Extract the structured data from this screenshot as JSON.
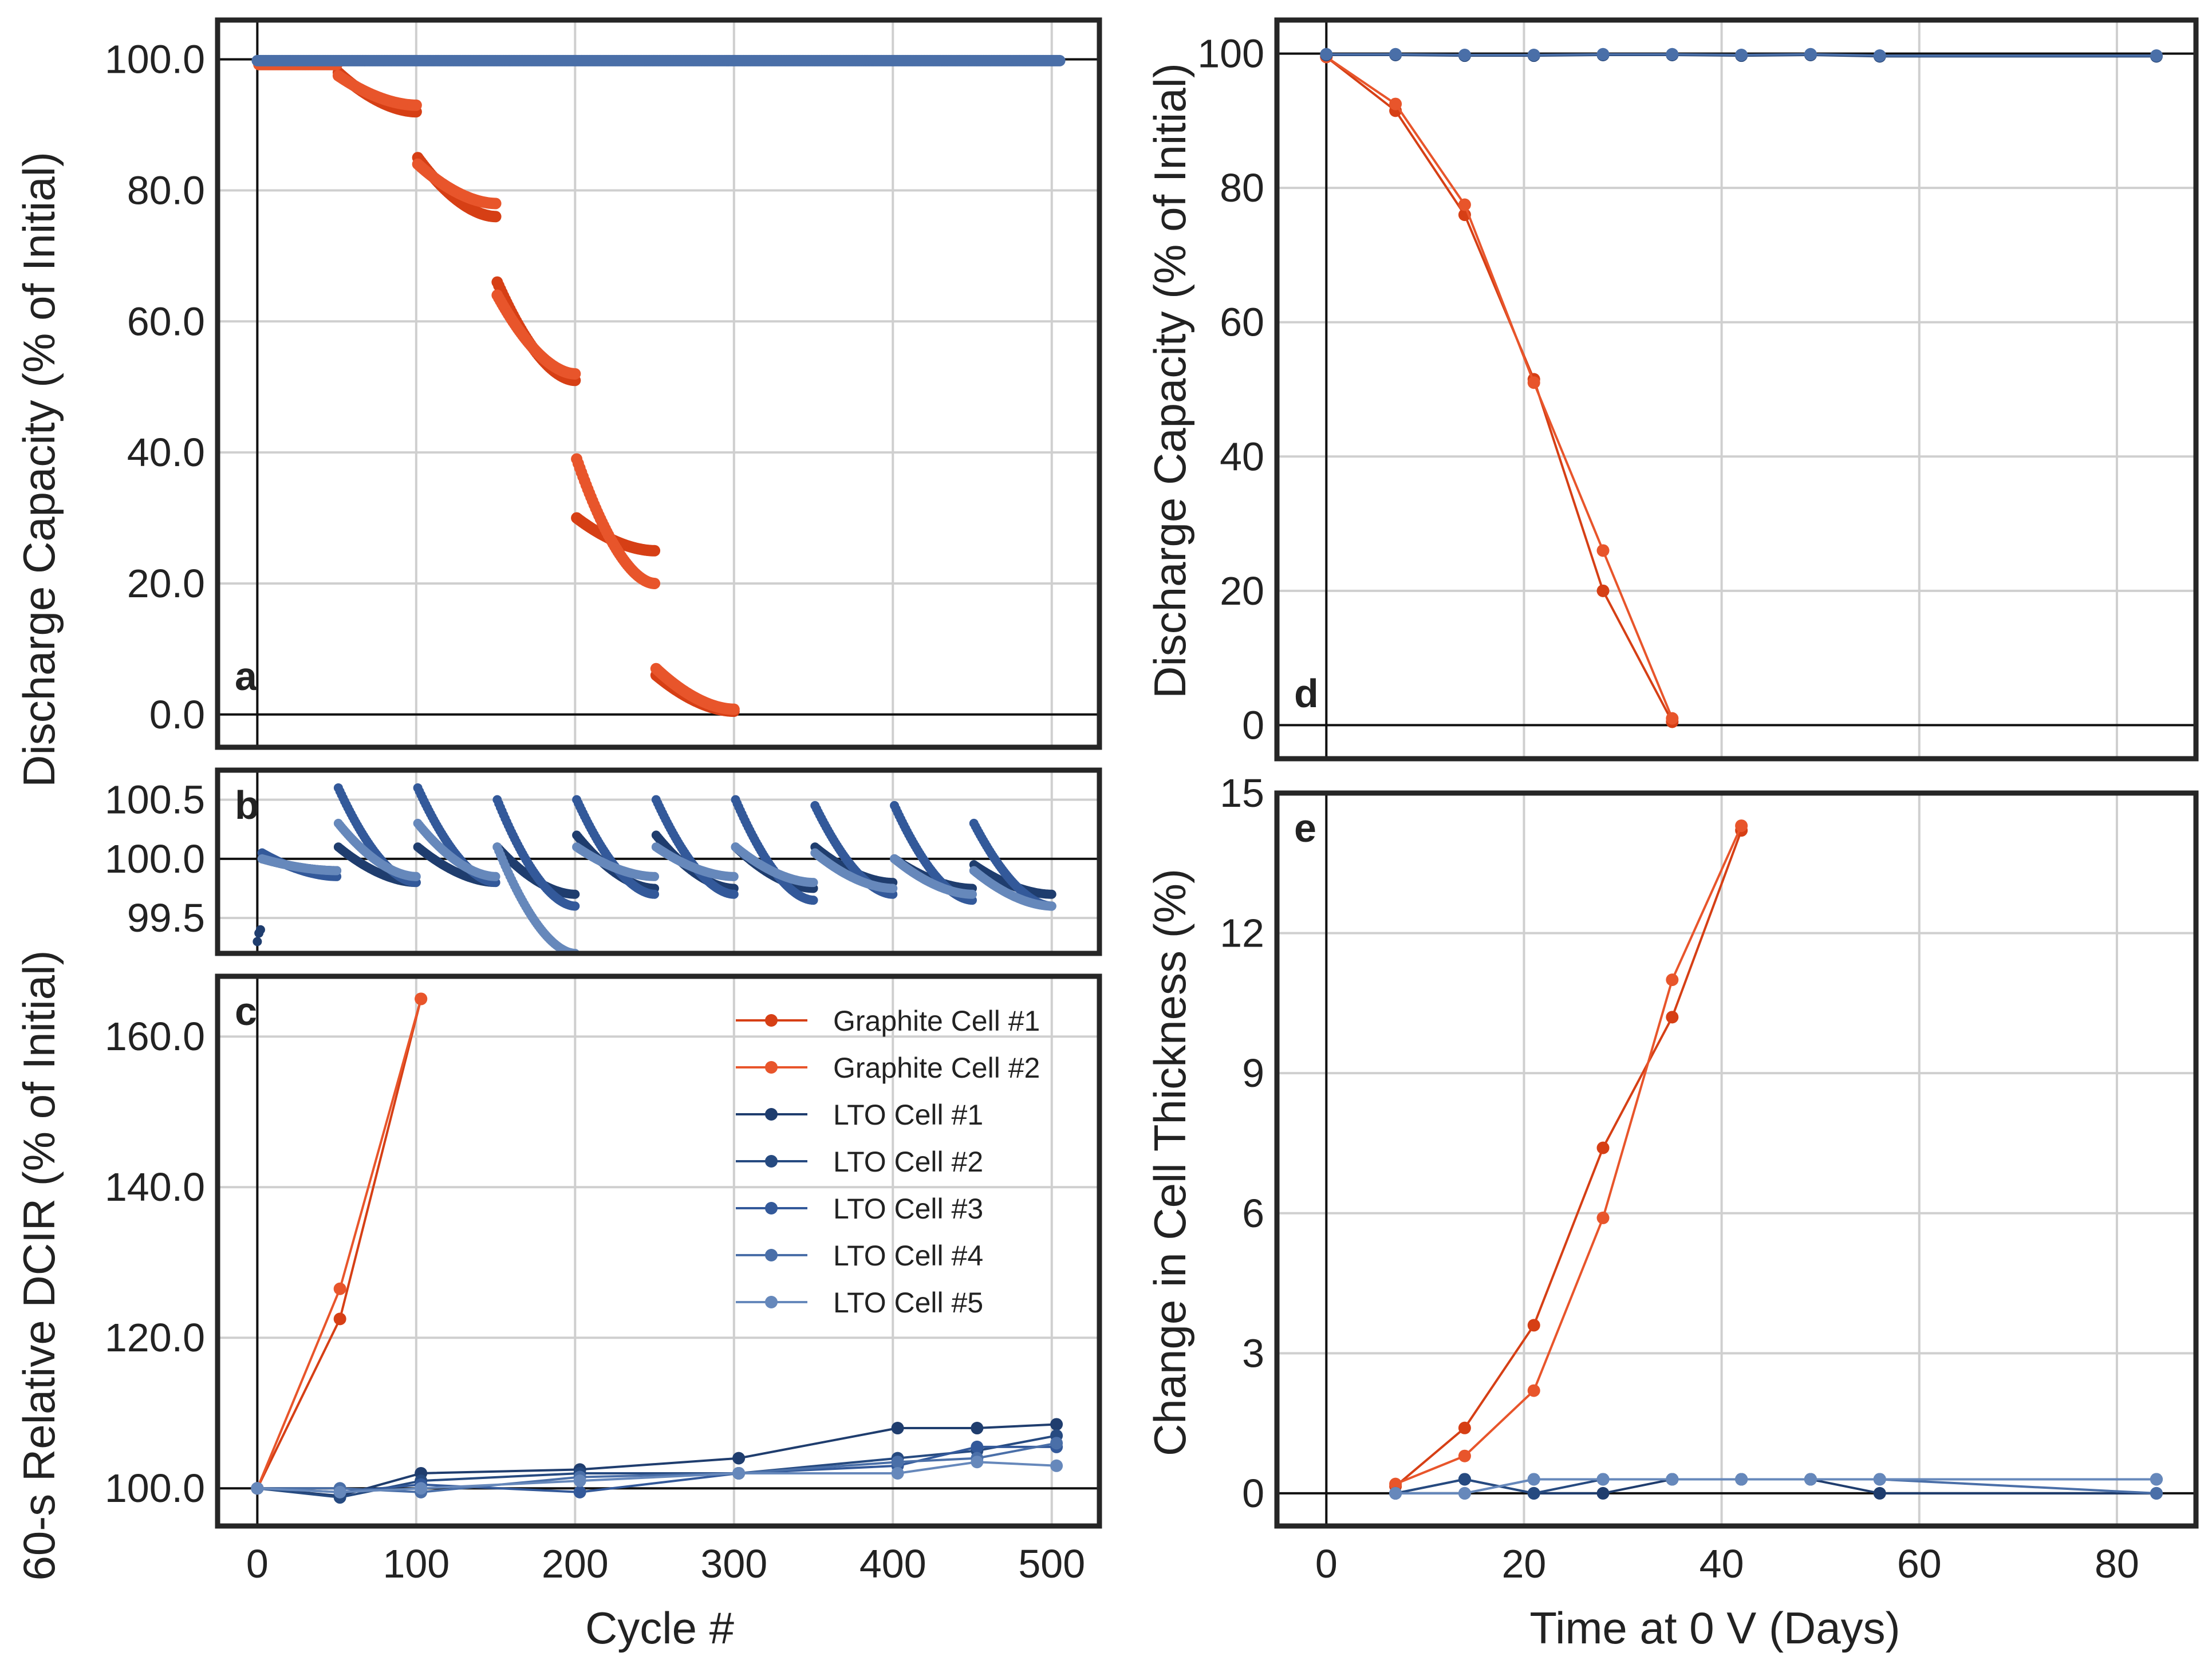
{
  "colors": {
    "graphite1": "#d63f15",
    "graphite2": "#e8552b",
    "lto1": "#1f3d6e",
    "lto2": "#264a80",
    "lto3": "#33599a",
    "lto4": "#4a6fa8",
    "lto5": "#6688bb"
  },
  "shared": {
    "left_ylabel_top": "Discharge Capacity (% of Initial)",
    "left_xlabel": "Cycle #"
  },
  "legend": {
    "entries": [
      {
        "label": "Graphite Cell #1",
        "color_key": "graphite1"
      },
      {
        "label": "Graphite Cell #2",
        "color_key": "graphite2"
      },
      {
        "label": "LTO Cell #1",
        "color_key": "lto1"
      },
      {
        "label": "LTO Cell #2",
        "color_key": "lto2"
      },
      {
        "label": "LTO Cell #3",
        "color_key": "lto3"
      },
      {
        "label": "LTO Cell #4",
        "color_key": "lto4"
      },
      {
        "label": "LTO Cell #5",
        "color_key": "lto5"
      }
    ]
  },
  "chart_data": [
    {
      "id": "a",
      "type": "scatter",
      "panel_label": "a",
      "xlim": [
        -25,
        530
      ],
      "ylim": [
        -5,
        106
      ],
      "xticks": [
        0,
        100,
        200,
        300,
        400,
        500
      ],
      "yticks": [
        0,
        20,
        40,
        60,
        80,
        100
      ],
      "ytick_labels": [
        "0.0",
        "20.0",
        "40.0",
        "60.0",
        "80.0",
        "100.0"
      ],
      "reference_lines": {
        "y": [
          0,
          100
        ],
        "x": [
          0
        ]
      },
      "series": [
        {
          "name": "Graphite Cell #1",
          "color_key": "graphite1",
          "segments": [
            {
              "x": [
                1,
                50
              ],
              "y": [
                99.5,
                99.5
              ]
            },
            {
              "x": [
                51,
                100
              ],
              "y": [
                98,
                92
              ]
            },
            {
              "x": [
                101,
                150
              ],
              "y": [
                85,
                76
              ]
            },
            {
              "x": [
                151,
                200
              ],
              "y": [
                66,
                51
              ]
            },
            {
              "x": [
                201,
                250
              ],
              "y": [
                30,
                25
              ]
            },
            {
              "x": [
                251,
                300
              ],
              "y": [
                6,
                0.5
              ]
            }
          ]
        },
        {
          "name": "Graphite Cell #2",
          "color_key": "graphite2",
          "segments": [
            {
              "x": [
                1,
                50
              ],
              "y": [
                99.2,
                99.2
              ]
            },
            {
              "x": [
                51,
                100
              ],
              "y": [
                97.5,
                93
              ]
            },
            {
              "x": [
                101,
                150
              ],
              "y": [
                84,
                78
              ]
            },
            {
              "x": [
                151,
                200
              ],
              "y": [
                64,
                52
              ]
            },
            {
              "x": [
                201,
                250
              ],
              "y": [
                39,
                20
              ]
            },
            {
              "x": [
                251,
                300
              ],
              "y": [
                7,
                0.8
              ]
            }
          ]
        },
        {
          "name": "LTO cells",
          "color_key": "lto4",
          "segments": [
            {
              "x": [
                0,
                505
              ],
              "y": [
                99.8,
                99.8
              ]
            }
          ]
        }
      ]
    },
    {
      "id": "b",
      "type": "scatter",
      "panel_label": "b",
      "xlim": [
        -25,
        530
      ],
      "ylim": [
        99.2,
        100.75
      ],
      "yticks": [
        99.5,
        100.0,
        100.5
      ],
      "ytick_labels": [
        "99.5",
        "100.0",
        "100.5"
      ],
      "reference_lines": {
        "y": [
          100.0
        ],
        "x": [
          0
        ]
      },
      "series": [
        {
          "name": "LTO Cell #1",
          "color_key": "lto1",
          "segments": [
            {
              "x": [
                0,
                2
              ],
              "y": [
                99.3,
                99.4
              ]
            },
            {
              "x": [
                3,
                50
              ],
              "y": [
                100.0,
                99.9
              ]
            },
            {
              "x": [
                51,
                100
              ],
              "y": [
                100.1,
                99.8
              ]
            },
            {
              "x": [
                101,
                150
              ],
              "y": [
                100.1,
                99.8
              ]
            },
            {
              "x": [
                151,
                200
              ],
              "y": [
                100.1,
                99.7
              ]
            },
            {
              "x": [
                201,
                250
              ],
              "y": [
                100.2,
                99.75
              ]
            },
            {
              "x": [
                251,
                300
              ],
              "y": [
                100.2,
                99.75
              ]
            },
            {
              "x": [
                301,
                350
              ],
              "y": [
                100.1,
                99.75
              ]
            },
            {
              "x": [
                351,
                400
              ],
              "y": [
                100.1,
                99.8
              ]
            },
            {
              "x": [
                401,
                450
              ],
              "y": [
                100.0,
                99.75
              ]
            },
            {
              "x": [
                451,
                500
              ],
              "y": [
                99.95,
                99.7
              ]
            }
          ]
        },
        {
          "name": "LTO Cell #3",
          "color_key": "lto3",
          "segments": [
            {
              "x": [
                3,
                50
              ],
              "y": [
                100.05,
                99.85
              ]
            },
            {
              "x": [
                51,
                100
              ],
              "y": [
                100.6,
                99.8
              ]
            },
            {
              "x": [
                101,
                150
              ],
              "y": [
                100.6,
                99.8
              ]
            },
            {
              "x": [
                151,
                200
              ],
              "y": [
                100.5,
                99.6
              ]
            },
            {
              "x": [
                201,
                250
              ],
              "y": [
                100.5,
                99.7
              ]
            },
            {
              "x": [
                251,
                300
              ],
              "y": [
                100.5,
                99.7
              ]
            },
            {
              "x": [
                301,
                350
              ],
              "y": [
                100.5,
                99.65
              ]
            },
            {
              "x": [
                351,
                400
              ],
              "y": [
                100.45,
                99.7
              ]
            },
            {
              "x": [
                401,
                450
              ],
              "y": [
                100.45,
                99.65
              ]
            },
            {
              "x": [
                451,
                500
              ],
              "y": [
                100.3,
                99.6
              ]
            }
          ]
        },
        {
          "name": "LTO Cell #5",
          "color_key": "lto5",
          "segments": [
            {
              "x": [
                3,
                50
              ],
              "y": [
                100.0,
                99.9
              ]
            },
            {
              "x": [
                51,
                100
              ],
              "y": [
                100.3,
                99.85
              ]
            },
            {
              "x": [
                101,
                150
              ],
              "y": [
                100.3,
                99.85
              ]
            },
            {
              "x": [
                151,
                200
              ],
              "y": [
                100.1,
                99.2
              ]
            },
            {
              "x": [
                201,
                250
              ],
              "y": [
                100.1,
                99.85
              ]
            },
            {
              "x": [
                251,
                300
              ],
              "y": [
                100.1,
                99.85
              ]
            },
            {
              "x": [
                301,
                350
              ],
              "y": [
                100.1,
                99.8
              ]
            },
            {
              "x": [
                351,
                400
              ],
              "y": [
                100.05,
                99.75
              ]
            },
            {
              "x": [
                401,
                450
              ],
              "y": [
                100.0,
                99.7
              ]
            },
            {
              "x": [
                451,
                500
              ],
              "y": [
                99.9,
                99.6
              ]
            }
          ]
        }
      ]
    },
    {
      "id": "c",
      "type": "line",
      "panel_label": "c",
      "xlim": [
        -25,
        530
      ],
      "ylim": [
        95,
        168
      ],
      "xticks": [
        0,
        100,
        200,
        300,
        400,
        500
      ],
      "xtick_labels": [
        "0",
        "100",
        "200",
        "300",
        "400",
        "500"
      ],
      "yticks": [
        100,
        120,
        140,
        160
      ],
      "ytick_labels": [
        "100.0",
        "120.0",
        "140.0",
        "160.0"
      ],
      "ylabel": "60-s Relative DCIR (% of Initial)",
      "xlabel": "Cycle #",
      "reference_lines": {
        "y": [
          100
        ],
        "x": [
          0
        ]
      },
      "series": [
        {
          "name": "Graphite Cell #1",
          "color_key": "graphite1",
          "x": [
            0,
            52,
            103
          ],
          "y": [
            100,
            122.5,
            165
          ]
        },
        {
          "name": "Graphite Cell #2",
          "color_key": "graphite2",
          "x": [
            0,
            52,
            103
          ],
          "y": [
            100,
            126.5,
            165
          ]
        },
        {
          "name": "LTO Cell #1",
          "color_key": "lto1",
          "x": [
            0,
            52,
            103,
            203,
            303,
            403,
            453,
            503
          ],
          "y": [
            100,
            99,
            102,
            102.5,
            104,
            108,
            108,
            108.5
          ]
        },
        {
          "name": "LTO Cell #2",
          "color_key": "lto2",
          "x": [
            0,
            52,
            103,
            203,
            303,
            403,
            453,
            503
          ],
          "y": [
            100,
            98.8,
            101,
            102,
            102,
            104,
            105,
            107
          ]
        },
        {
          "name": "LTO Cell #3",
          "color_key": "lto3",
          "x": [
            0,
            52,
            103,
            203,
            303,
            403,
            453,
            503
          ],
          "y": [
            100,
            99.5,
            100.5,
            99.5,
            102,
            103,
            105.5,
            105.5
          ]
        },
        {
          "name": "LTO Cell #4",
          "color_key": "lto4",
          "x": [
            0,
            52,
            103,
            203,
            303,
            403,
            453,
            503
          ],
          "y": [
            100,
            100,
            99.5,
            101.5,
            102,
            103.5,
            104,
            106
          ]
        },
        {
          "name": "LTO Cell #5",
          "color_key": "lto5",
          "x": [
            0,
            52,
            103,
            203,
            303,
            403,
            453,
            503
          ],
          "y": [
            100,
            99.5,
            100,
            101,
            102,
            102,
            103.5,
            103
          ]
        }
      ]
    },
    {
      "id": "d",
      "type": "line",
      "panel_label": "d",
      "xlim": [
        -5,
        88
      ],
      "ylim": [
        -5,
        105
      ],
      "xticks": [
        0,
        20,
        40,
        60,
        80
      ],
      "yticks": [
        0,
        20,
        40,
        60,
        80,
        100
      ],
      "ytick_labels": [
        "0",
        "20",
        "40",
        "60",
        "80",
        "100"
      ],
      "ylabel": "Discharge Capacity (% of Initial)",
      "reference_lines": {
        "y": [
          0,
          100
        ],
        "x": [
          0
        ]
      },
      "series": [
        {
          "name": "Graphite Cell #1",
          "color_key": "graphite1",
          "x": [
            0,
            7,
            14,
            21,
            28,
            35
          ],
          "y": [
            99.5,
            91.5,
            76,
            51.5,
            20,
            0.5
          ]
        },
        {
          "name": "Graphite Cell #2",
          "color_key": "graphite2",
          "x": [
            0,
            7,
            14,
            21,
            28,
            35
          ],
          "y": [
            99.5,
            92.5,
            77.5,
            51,
            26,
            1
          ]
        },
        {
          "name": "LTO Cell #1",
          "color_key": "lto1",
          "x": [
            0,
            7,
            14,
            21,
            28,
            35,
            42,
            49,
            56,
            84
          ],
          "y": [
            99.8,
            99.8,
            99.7,
            99.7,
            99.8,
            99.8,
            99.7,
            99.8,
            99.6,
            99.6
          ]
        },
        {
          "name": "LTO Cell #4",
          "color_key": "lto4",
          "x": [
            0,
            7,
            14,
            21,
            28,
            35,
            42,
            49,
            56,
            84
          ],
          "y": [
            99.9,
            99.9,
            99.8,
            99.8,
            99.9,
            99.9,
            99.8,
            99.9,
            99.7,
            99.7
          ]
        }
      ]
    },
    {
      "id": "e",
      "type": "line",
      "panel_label": "e",
      "xlim": [
        -5,
        88
      ],
      "ylim": [
        -0.7,
        15
      ],
      "xticks": [
        0,
        20,
        40,
        60,
        80
      ],
      "xtick_labels": [
        "0",
        "20",
        "40",
        "60",
        "80"
      ],
      "yticks": [
        0,
        3,
        6,
        9,
        12,
        15
      ],
      "ytick_labels": [
        "0",
        "3",
        "6",
        "9",
        "12",
        "15"
      ],
      "ylabel": "Change in Cell Thickness (%)",
      "xlabel": "Time at 0 V (Days)",
      "reference_lines": {
        "y": [
          0
        ],
        "x": [
          0
        ]
      },
      "series": [
        {
          "name": "Graphite Cell #1",
          "color_key": "graphite1",
          "x": [
            7,
            14,
            21,
            28,
            35,
            42
          ],
          "y": [
            0.15,
            1.4,
            3.6,
            7.4,
            10.2,
            14.2
          ]
        },
        {
          "name": "Graphite Cell #2",
          "color_key": "graphite2",
          "x": [
            7,
            14,
            21,
            28,
            35,
            42
          ],
          "y": [
            0.2,
            0.8,
            2.2,
            5.9,
            11.0,
            14.3
          ]
        },
        {
          "name": "LTO Cell #1",
          "color_key": "lto1",
          "x": [
            7,
            14,
            21,
            28,
            35,
            42,
            49,
            56,
            84
          ],
          "y": [
            0,
            0.3,
            0,
            0,
            0.3,
            0.3,
            0.3,
            0,
            0
          ]
        },
        {
          "name": "LTO Cell #2",
          "color_key": "lto2",
          "x": [
            7,
            14,
            21,
            28,
            35,
            42,
            49,
            56,
            84
          ],
          "y": [
            0,
            0.3,
            0,
            0.3,
            0.3,
            0.3,
            0.3,
            0.3,
            0.3
          ]
        },
        {
          "name": "LTO Cell #4",
          "color_key": "lto4",
          "x": [
            7,
            14,
            21,
            28,
            35,
            42,
            49,
            56,
            84
          ],
          "y": [
            0,
            0,
            0.3,
            0.3,
            0.3,
            0.3,
            0.3,
            0.3,
            0
          ]
        },
        {
          "name": "LTO Cell #5",
          "color_key": "lto5",
          "x": [
            7,
            14,
            21,
            28,
            35,
            42,
            49,
            56,
            84
          ],
          "y": [
            0,
            0,
            0.3,
            0.3,
            0.3,
            0.3,
            0.3,
            0.3,
            0.3
          ]
        }
      ]
    }
  ]
}
